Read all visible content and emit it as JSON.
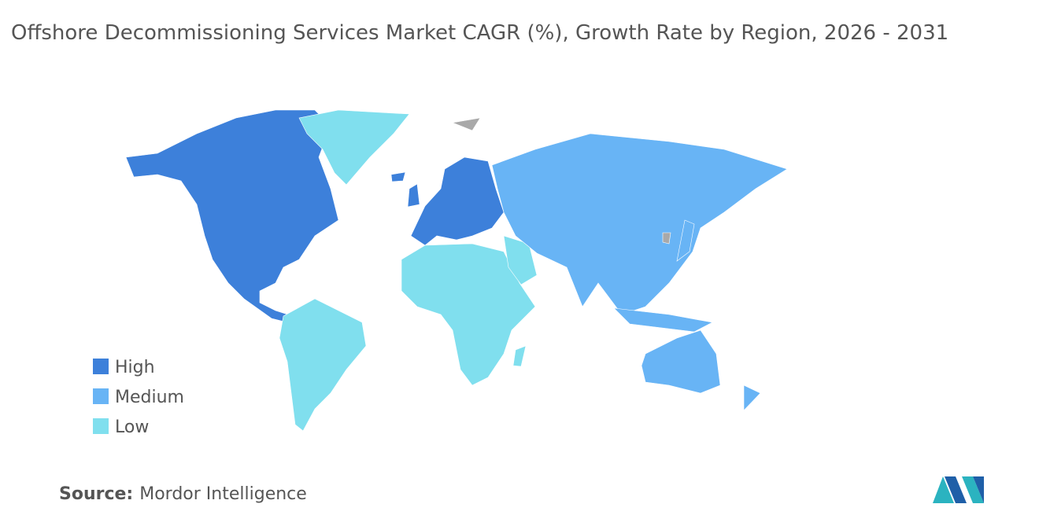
{
  "title": "Offshore Decommissioning Services Market CAGR (%), Growth Rate by Region, 2026 - 2031",
  "legend": [
    {
      "label": "High",
      "color": "#3d80da"
    },
    {
      "label": "Medium",
      "color": "#68b4f5"
    },
    {
      "label": "Low",
      "color": "#80dfee"
    }
  ],
  "source": {
    "label": "Source:",
    "text": "Mordor Intelligence"
  }
}
